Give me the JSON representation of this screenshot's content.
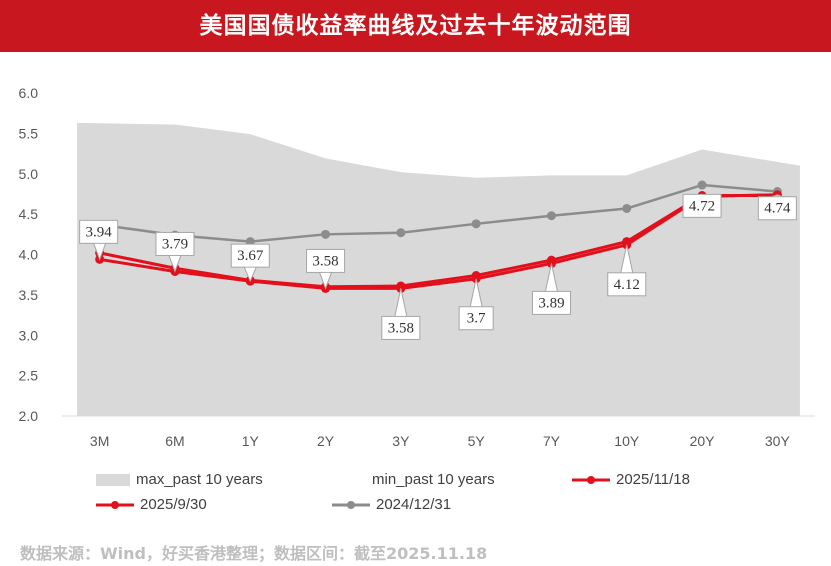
{
  "title": "美国国债收益率曲线及过去十年波动范围",
  "source": "数据来源：Wind，好买香港整理；数据区间：截至2025.11.18",
  "colors": {
    "title_bg": "#c8171e",
    "band": "#d9d9d9",
    "red": "#e3101c",
    "gray": "#8c8c8c"
  },
  "chart_data": {
    "type": "line",
    "categories": [
      "3M",
      "6M",
      "1Y",
      "2Y",
      "3Y",
      "5Y",
      "7Y",
      "10Y",
      "20Y",
      "30Y"
    ],
    "ylim": [
      2.0,
      6.0
    ],
    "yticks": [
      "2.0",
      "2.5",
      "3.0",
      "3.5",
      "4.0",
      "4.5",
      "5.0",
      "5.5",
      "6.0"
    ],
    "band": {
      "max_name": "max_past 10 years",
      "min_name": "min_past 10 years",
      "max": [
        5.63,
        5.61,
        5.49,
        5.19,
        5.02,
        4.95,
        4.98,
        4.98,
        5.3,
        5.1
      ],
      "min": [
        0.0,
        0.02,
        0.04,
        0.09,
        0.11,
        0.19,
        0.36,
        0.52,
        0.87,
        0.99
      ]
    },
    "series": [
      {
        "name": "2024/12/31",
        "values": [
          4.37,
          4.24,
          4.16,
          4.25,
          4.27,
          4.38,
          4.48,
          4.57,
          4.86,
          4.78
        ]
      },
      {
        "name": "2025/9/30",
        "values": [
          4.02,
          3.83,
          3.68,
          3.6,
          3.61,
          3.74,
          3.93,
          4.16,
          4.73,
          4.73
        ]
      },
      {
        "name": "2025/11/18",
        "values": [
          3.94,
          3.79,
          3.67,
          3.58,
          3.58,
          3.7,
          3.89,
          4.12,
          4.72,
          4.74
        ]
      }
    ],
    "data_labels": [
      "3.94",
      "3.79",
      "3.67",
      "3.58",
      "3.58",
      "3.7",
      "3.89",
      "4.12",
      "4.72",
      "4.74"
    ]
  }
}
